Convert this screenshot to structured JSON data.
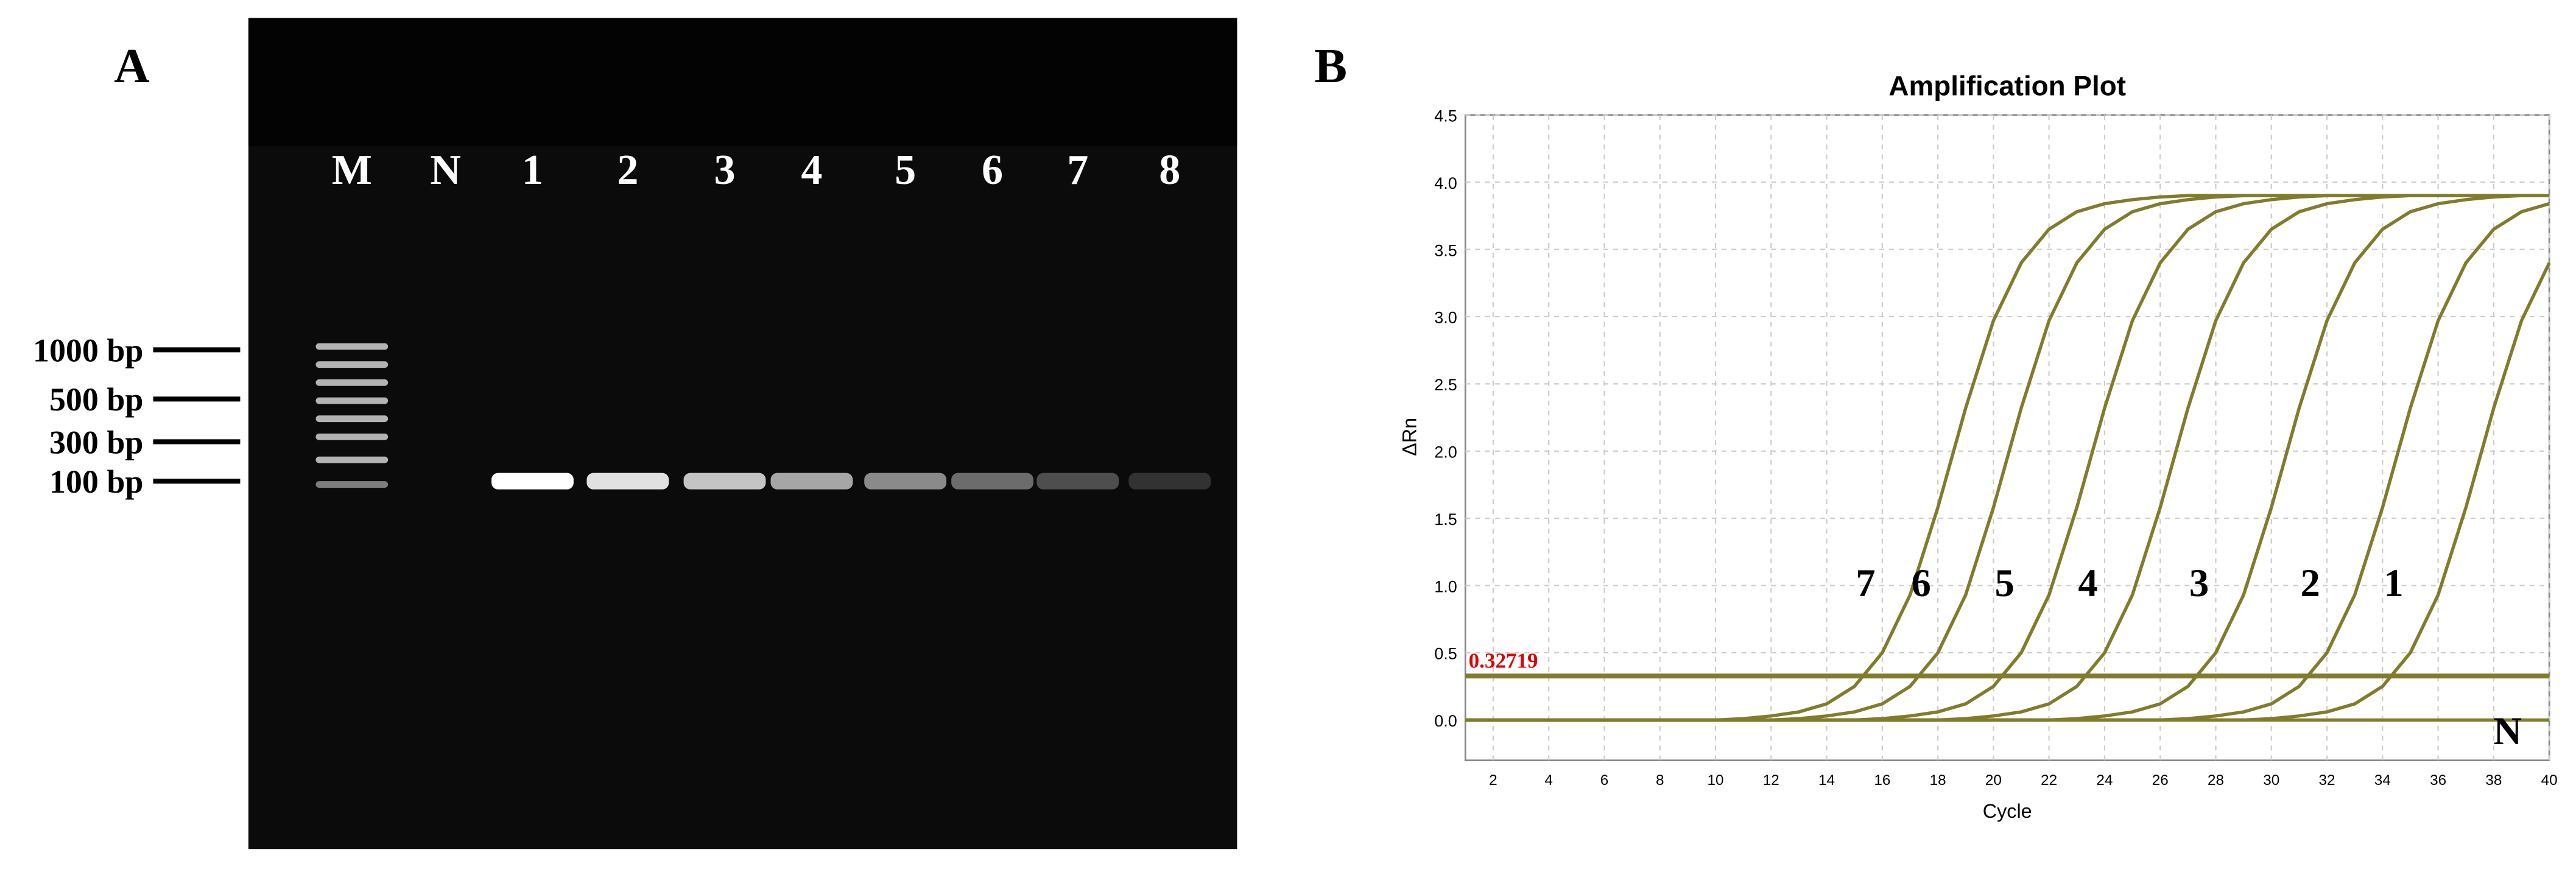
{
  "figure_labels": [
    "A",
    "B"
  ],
  "gel": {
    "lanes": [
      "M",
      "N",
      "1",
      "2",
      "3",
      "4",
      "5",
      "6",
      "7",
      "8"
    ],
    "ladder_labels": [
      "1000 bp",
      "500 bp",
      "300 bp",
      "100 bp"
    ]
  },
  "chart_data": {
    "type": "line",
    "title": "Amplification Plot",
    "x_label": "Cycle",
    "y_label": "ΔRn",
    "x": [
      1,
      2,
      3,
      4,
      5,
      6,
      7,
      8,
      9,
      10,
      11,
      12,
      13,
      14,
      15,
      16,
      17,
      18,
      19,
      20,
      21,
      22,
      23,
      24,
      25,
      26,
      27,
      28,
      29,
      30,
      31,
      32,
      33,
      34,
      35,
      36,
      37,
      38,
      39,
      40
    ],
    "series": [
      {
        "name": "7",
        "color": "#807c2c",
        "values": [
          0,
          0,
          0,
          0,
          0,
          0,
          0,
          0,
          0,
          0,
          0.01,
          0.03,
          0.06,
          0.12,
          0.25,
          0.5,
          0.93,
          1.58,
          2.32,
          2.97,
          3.4,
          3.65,
          3.78,
          3.84,
          3.87,
          3.89,
          3.9,
          3.9,
          3.9,
          3.9,
          3.9,
          3.9,
          3.9,
          3.9,
          3.9,
          3.9,
          3.9,
          3.9,
          3.9,
          3.9
        ]
      },
      {
        "name": "6",
        "color": "#807c2c",
        "values": [
          0,
          0,
          0,
          0,
          0,
          0,
          0,
          0,
          0,
          0,
          0,
          0,
          0.01,
          0.03,
          0.06,
          0.12,
          0.25,
          0.5,
          0.93,
          1.58,
          2.32,
          2.97,
          3.4,
          3.65,
          3.78,
          3.84,
          3.87,
          3.89,
          3.9,
          3.9,
          3.9,
          3.9,
          3.9,
          3.9,
          3.9,
          3.9,
          3.9,
          3.9,
          3.9,
          3.9
        ]
      },
      {
        "name": "5",
        "color": "#807c2c",
        "values": [
          0,
          0,
          0,
          0,
          0,
          0,
          0,
          0,
          0,
          0,
          0,
          0,
          0,
          0,
          0,
          0.01,
          0.03,
          0.06,
          0.12,
          0.25,
          0.5,
          0.93,
          1.58,
          2.32,
          2.97,
          3.4,
          3.65,
          3.78,
          3.84,
          3.87,
          3.89,
          3.9,
          3.9,
          3.9,
          3.9,
          3.9,
          3.9,
          3.9,
          3.9,
          3.9
        ]
      },
      {
        "name": "4",
        "color": "#807c2c",
        "values": [
          0,
          0,
          0,
          0,
          0,
          0,
          0,
          0,
          0,
          0,
          0,
          0,
          0,
          0,
          0,
          0,
          0,
          0,
          0.01,
          0.03,
          0.06,
          0.12,
          0.25,
          0.5,
          0.93,
          1.58,
          2.32,
          2.97,
          3.4,
          3.65,
          3.78,
          3.84,
          3.87,
          3.89,
          3.9,
          3.9,
          3.9,
          3.9,
          3.9,
          3.9
        ]
      },
      {
        "name": "3",
        "color": "#807c2c",
        "values": [
          0,
          0,
          0,
          0,
          0,
          0,
          0,
          0,
          0,
          0,
          0,
          0,
          0,
          0,
          0,
          0,
          0,
          0,
          0,
          0,
          0,
          0,
          0.01,
          0.03,
          0.06,
          0.12,
          0.25,
          0.5,
          0.93,
          1.58,
          2.32,
          2.97,
          3.4,
          3.65,
          3.78,
          3.84,
          3.87,
          3.89,
          3.9,
          3.9
        ]
      },
      {
        "name": "2",
        "color": "#807c2c",
        "values": [
          0,
          0,
          0,
          0,
          0,
          0,
          0,
          0,
          0,
          0,
          0,
          0,
          0,
          0,
          0,
          0,
          0,
          0,
          0,
          0,
          0,
          0,
          0,
          0,
          0,
          0,
          0.01,
          0.03,
          0.06,
          0.12,
          0.25,
          0.5,
          0.93,
          1.58,
          2.32,
          2.97,
          3.4,
          3.65,
          3.78,
          3.84
        ]
      },
      {
        "name": "1",
        "color": "#807c2c",
        "values": [
          0,
          0,
          0,
          0,
          0,
          0,
          0,
          0,
          0,
          0,
          0,
          0,
          0,
          0,
          0,
          0,
          0,
          0,
          0,
          0,
          0,
          0,
          0,
          0,
          0,
          0,
          0,
          0,
          0,
          0.01,
          0.03,
          0.06,
          0.12,
          0.25,
          0.5,
          0.93,
          1.58,
          2.32,
          2.97,
          3.4
        ]
      },
      {
        "name": "N",
        "color": "#807c2c",
        "values": [
          0,
          0,
          0,
          0,
          0,
          0,
          0,
          0,
          0,
          0,
          0,
          0,
          0,
          0,
          0,
          0,
          0,
          0,
          0,
          0,
          0,
          0,
          0,
          0,
          0,
          0,
          0,
          0,
          0,
          0,
          0,
          0,
          0,
          0,
          0,
          0,
          0,
          0,
          0,
          0
        ]
      }
    ],
    "threshold": 0.32719,
    "threshold_color": "#e00000",
    "xlim": [
      1,
      40
    ],
    "xticks": [
      2,
      4,
      6,
      8,
      10,
      12,
      14,
      16,
      18,
      20,
      22,
      24,
      26,
      28,
      30,
      32,
      34,
      36,
      38,
      40
    ],
    "ylim": [
      -0.3,
      4.5
    ],
    "yticks": [
      {
        "value": 0,
        "label": "0.0"
      },
      0.5,
      {
        "value": 1,
        "label": "1.0"
      },
      1.5,
      {
        "value": 2,
        "label": "2.0"
      },
      2.5,
      {
        "value": 3,
        "label": "3.0"
      },
      3.5,
      {
        "value": 4,
        "label": "4.0"
      },
      4.5
    ],
    "grid": true
  }
}
